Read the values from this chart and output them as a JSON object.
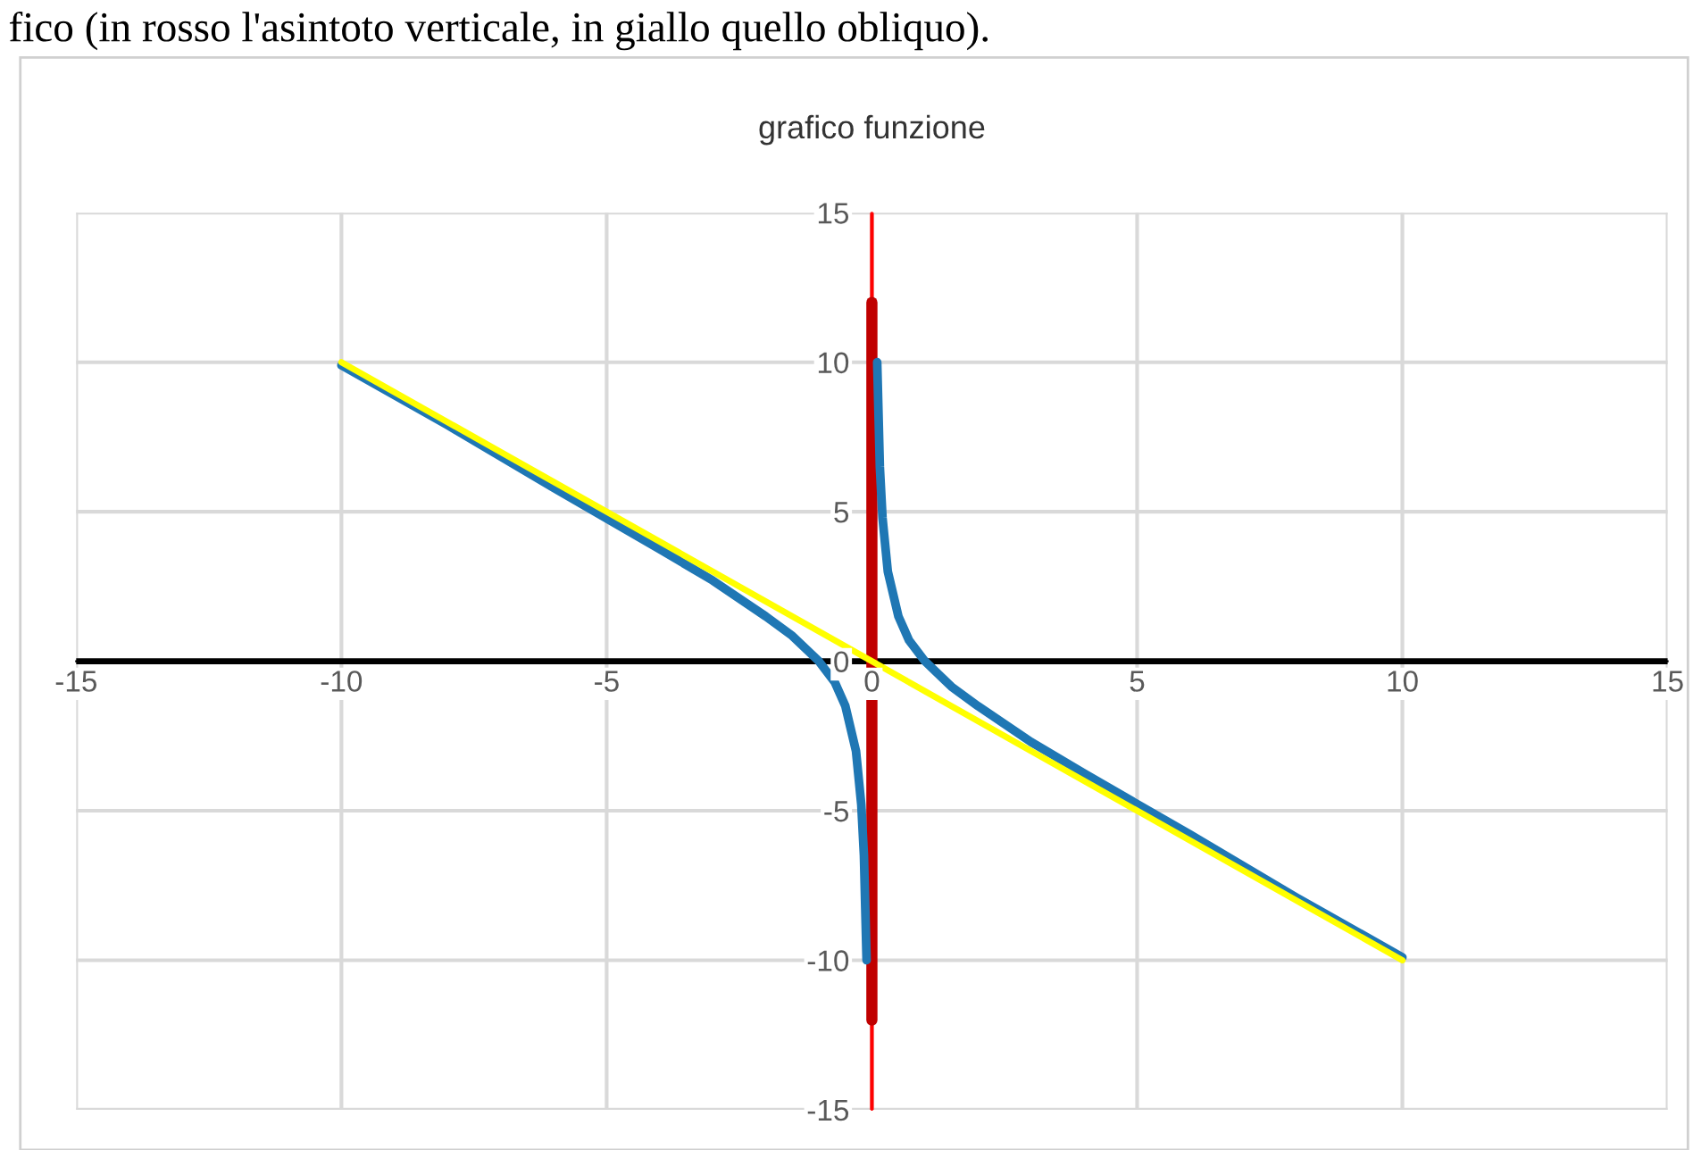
{
  "chart_data": {
    "type": "line",
    "title": "grafico funzione",
    "annotations": [
      "fico (in rosso l'asintoto verticale, in giallo quello obliquo)."
    ],
    "xlim": [
      -15,
      15
    ],
    "xticks": [
      -15,
      -10,
      -5,
      0,
      5,
      10,
      15
    ],
    "ylim": [
      -15,
      15
    ],
    "yticks": [
      -15,
      -10,
      -5,
      0,
      5,
      10,
      15
    ],
    "grid": true,
    "legend": false,
    "marker": "none",
    "line_style": "solid",
    "ref_lines": [
      {
        "axis": "x",
        "value": 0,
        "color": "#ff0000"
      },
      {
        "axis": "y",
        "value": 0,
        "color": "#000000"
      }
    ],
    "series": [
      {
        "color": "#c00000",
        "x": [
          0,
          0
        ],
        "values": [
          12,
          -12
        ]
      },
      {
        "color": "#1f77b4",
        "x": [
          -10,
          -8,
          -6,
          -4,
          -3,
          -2,
          -1.5,
          -1,
          -0.7,
          -0.5,
          -0.3,
          -0.2,
          -0.15,
          -0.1,
          0,
          0.1,
          0.15,
          0.2,
          0.3,
          0.5,
          0.7,
          1,
          1.5,
          2,
          3,
          4,
          6,
          8,
          10
        ],
        "values": [
          9.9,
          7.9,
          5.8,
          3.75,
          2.7,
          1.5,
          0.85,
          0,
          -0.7,
          -1.5,
          -3,
          -4.8,
          -6.5,
          -10,
          null,
          10,
          6.5,
          4.8,
          3,
          1.5,
          0.7,
          0,
          -0.85,
          -1.5,
          -2.7,
          -3.75,
          -5.8,
          -7.9,
          -9.9
        ]
      },
      {
        "color": "#ffff00",
        "x": [
          -10,
          10
        ],
        "values": [
          10,
          -10
        ]
      }
    ]
  }
}
